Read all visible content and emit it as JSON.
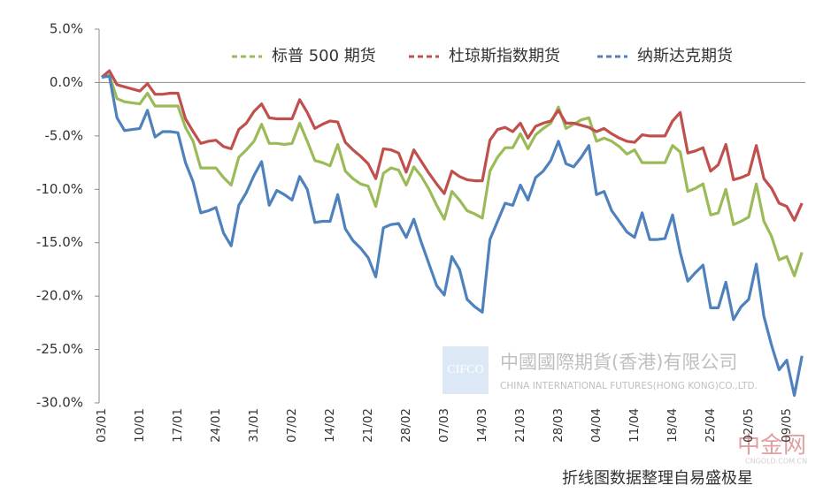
{
  "chart_data": {
    "type": "line",
    "categories": [
      "03/01",
      null,
      null,
      null,
      null,
      "10/01",
      null,
      null,
      null,
      null,
      "17/01",
      null,
      null,
      null,
      null,
      "24/01",
      null,
      null,
      null,
      null,
      "31/01",
      null,
      null,
      null,
      null,
      "07/02",
      null,
      null,
      null,
      null,
      "14/02",
      null,
      null,
      null,
      null,
      "21/02",
      null,
      null,
      null,
      null,
      "28/02",
      null,
      null,
      null,
      null,
      "07/03",
      null,
      null,
      null,
      null,
      "14/03",
      null,
      null,
      null,
      null,
      "21/03",
      null,
      null,
      null,
      null,
      "28/03",
      null,
      null,
      null,
      null,
      "04/04",
      null,
      null,
      null,
      null,
      "11/04",
      null,
      null,
      null,
      null,
      "18/04",
      null,
      null,
      null,
      null,
      "25/04",
      null,
      null,
      null,
      null,
      "02/05",
      null,
      null,
      null,
      null,
      "09/05",
      null,
      null
    ],
    "series": [
      {
        "name": "标普 500 期货",
        "color": "#9bbb59",
        "values": [
          0.5,
          0.7,
          -1.5,
          -1.8,
          -1.9,
          -2.0,
          -1.0,
          -2.2,
          -2.2,
          -2.2,
          -2.2,
          -4.2,
          -5.5,
          -8,
          -8,
          -8,
          -8.9,
          -9.6,
          -7,
          -6.3,
          -5.5,
          -3.9,
          -5.7,
          -5.7,
          -5.8,
          -5.7,
          -3.8,
          -5.5,
          -7.3,
          -7.5,
          -7.8,
          -5.8,
          -8.3,
          -9,
          -9.5,
          -9.7,
          -11.6,
          -8.5,
          -8,
          -8.2,
          -9.6,
          -7.9,
          -8.8,
          -10,
          -11.5,
          -12.8,
          -10.2,
          -11,
          -12,
          -12.3,
          -12.7,
          -8.3,
          -7,
          -6.1,
          -6.1,
          -4.8,
          -6.2,
          -4.9,
          -4.3,
          -3.8,
          -2.3,
          -4.3,
          -3.9,
          -3.5,
          -3.3,
          -5.5,
          -5.2,
          -5.5,
          -6,
          -6.7,
          -6.3,
          -7.5,
          -7.5,
          -7.5,
          -7.5,
          -5.9,
          -6.5,
          -10.2,
          -9.9,
          -9.5,
          -12.4,
          -12.2,
          -10,
          -13.3,
          -13,
          -12.6,
          -9.5,
          -13,
          -14.4,
          -16.6,
          -16.3,
          -18.1,
          -15.9
        ]
      },
      {
        "name": "杜琼斯指数期货",
        "color": "#c0504d",
        "values": [
          0.5,
          1.1,
          -0.2,
          -0.4,
          -0.6,
          -0.8,
          -0.1,
          -1.1,
          -1.1,
          -1.0,
          -1.0,
          -3.4,
          -4.6,
          -5.7,
          -5.5,
          -5.4,
          -6.0,
          -6.2,
          -4.4,
          -3.8,
          -2.7,
          -2,
          -3.3,
          -3.4,
          -3.4,
          -3.4,
          -1.6,
          -2.8,
          -4.3,
          -3.9,
          -3.6,
          -3.7,
          -5.6,
          -6.3,
          -6.9,
          -7.6,
          -9,
          -6.2,
          -6.3,
          -6.6,
          -8.4,
          -6.3,
          -7.4,
          -8.5,
          -9.5,
          -10.4,
          -8.3,
          -8.8,
          -9.1,
          -9.2,
          -9.2,
          -5.4,
          -4.4,
          -4.2,
          -4.6,
          -3.8,
          -5.2,
          -4.1,
          -3.8,
          -3.6,
          -2.6,
          -3.8,
          -3.8,
          -4.0,
          -4.2,
          -4.6,
          -4.3,
          -4.8,
          -5.2,
          -5.5,
          -5.6,
          -4.9,
          -5,
          -5,
          -5,
          -3.6,
          -2.8,
          -6.6,
          -6.4,
          -6.1,
          -8.3,
          -7.7,
          -5.8,
          -9.1,
          -8.9,
          -8.6,
          -5.9,
          -9,
          -9.9,
          -11.3,
          -11.6,
          -12.9,
          -11.3
        ]
      },
      {
        "name": "纳斯达克期货",
        "color": "#4f81bd",
        "values": [
          0.5,
          0.6,
          -3.3,
          -4.5,
          -4.4,
          -4.3,
          -2.6,
          -5.1,
          -4.6,
          -4.6,
          -4.7,
          -7.5,
          -9.3,
          -12.2,
          -12,
          -11.7,
          -14.1,
          -15.3,
          -11.5,
          -10.3,
          -8.7,
          -7.4,
          -11.5,
          -10.1,
          -10.5,
          -11,
          -8.8,
          -10,
          -13.1,
          -13,
          -13,
          -10.5,
          -13.7,
          -14.8,
          -15.5,
          -16.4,
          -18.2,
          -13.6,
          -13.3,
          -13.2,
          -14.5,
          -12.8,
          -15,
          -17,
          -19,
          -19.9,
          -16.3,
          -17.5,
          -20.3,
          -21,
          -21.5,
          -14.7,
          -13,
          -11.3,
          -11.5,
          -9.6,
          -11,
          -8.9,
          -8.3,
          -7.3,
          -5.5,
          -7.6,
          -7.9,
          -7,
          -5.9,
          -10.5,
          -10.2,
          -12,
          -13,
          -14,
          -14.5,
          -12.2,
          -14.7,
          -14.7,
          -14.6,
          -12.4,
          -15.9,
          -18.6,
          -17.8,
          -17.1,
          -21.1,
          -21.1,
          -18.7,
          -22.2,
          -21,
          -20.3,
          -17,
          -21.9,
          -24.6,
          -26.9,
          -26,
          -29.3,
          -25.6
        ]
      }
    ],
    "ylim": [
      -30,
      5
    ],
    "yticks": [
      {
        "value": 5,
        "label": "5.0%"
      },
      {
        "value": 0,
        "label": "0.0%"
      },
      {
        "value": -5,
        "label": "-5.0%"
      },
      {
        "value": -10,
        "label": "-10.0%"
      },
      {
        "value": -15,
        "label": "-15.0%"
      },
      {
        "value": -20,
        "label": "-20.0%"
      },
      {
        "value": -25,
        "label": "-25.0%"
      },
      {
        "value": -30,
        "label": "-30.0%"
      }
    ],
    "grid": false,
    "legend": "top-right",
    "annotations": [
      "CIFCO",
      "中國國際期貨(香港)有限公司",
      "CHINA INTERNATIONAL FUTURES(HONG KONG)CO.,LTD.",
      "中金网",
      "CNGOLD.COM.CN",
      "折线图数据整理自易盛极星"
    ]
  }
}
